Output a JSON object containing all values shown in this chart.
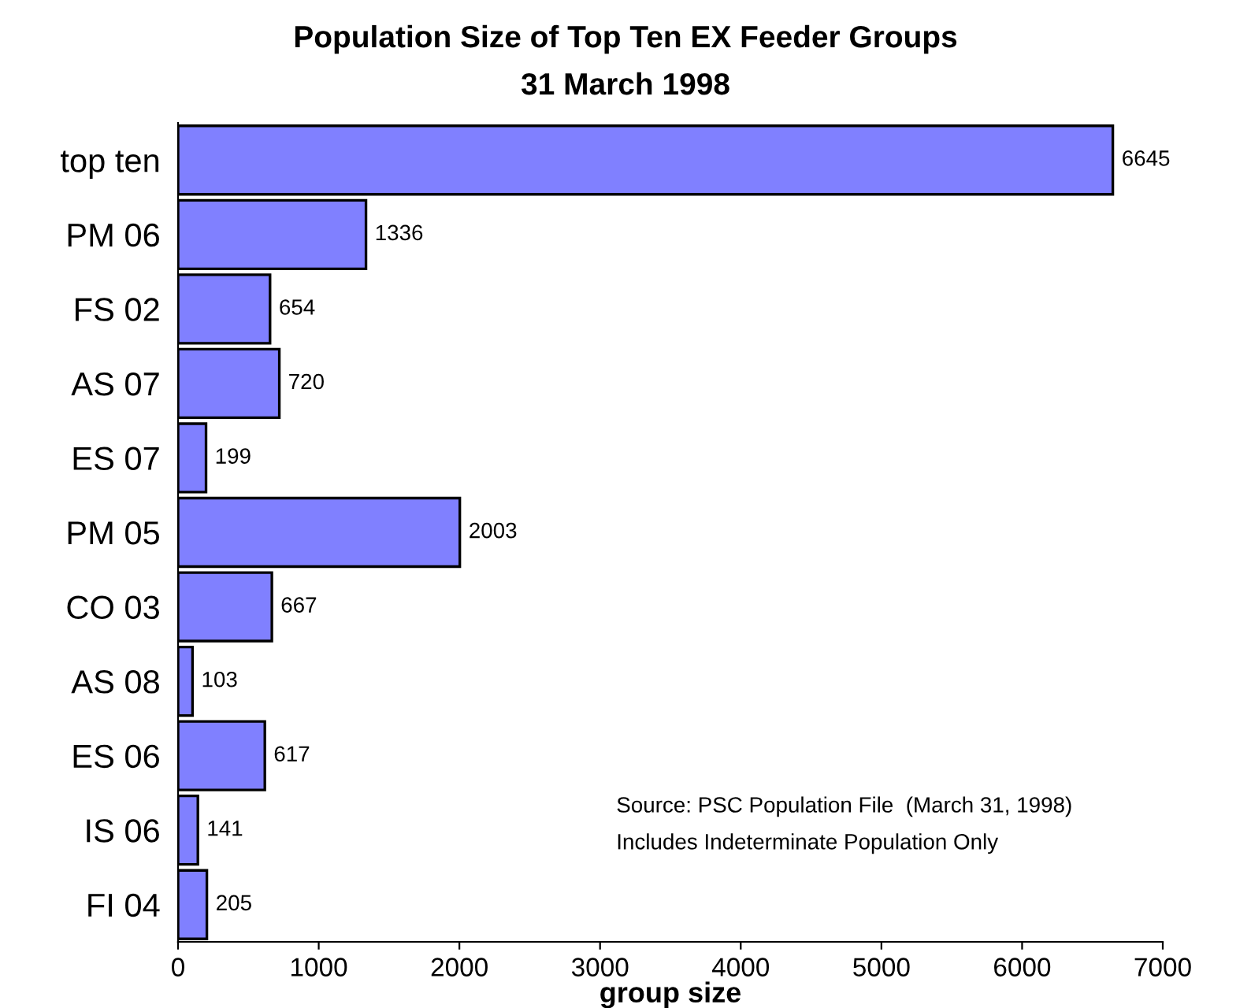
{
  "chart_data": {
    "type": "bar",
    "orientation": "horizontal",
    "title": "Population Size of Top Ten EX Feeder Groups",
    "subtitle": "31 March 1998",
    "xlabel": "group size",
    "categories": [
      "top ten",
      "PM 06",
      "FS 02",
      "AS 07",
      "ES 07",
      "PM 05",
      "CO 03",
      "AS 08",
      "ES 06",
      "IS 06",
      "FI 04"
    ],
    "values": [
      6645,
      1336,
      654,
      720,
      199,
      2003,
      667,
      103,
      617,
      141,
      205
    ],
    "color": "#8080ff",
    "data_labels": true,
    "xlim": [
      0,
      7000
    ],
    "xticks": [
      0,
      1000,
      2000,
      3000,
      4000,
      5000,
      6000,
      7000
    ],
    "grid": false,
    "legend": false,
    "annotations": [
      "Source: PSC Population File  (March 31, 1998)",
      "Includes Indeterminate Population Only"
    ]
  }
}
